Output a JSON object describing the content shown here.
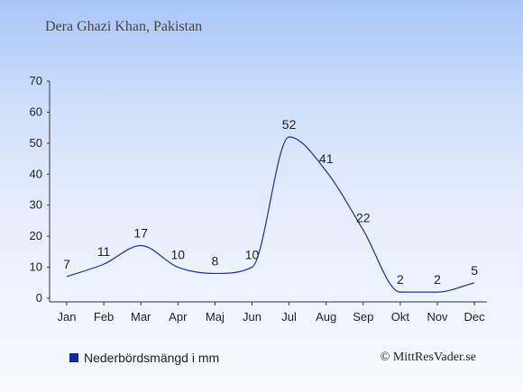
{
  "header": {
    "title": "Dera Ghazi Khan, Pakistan"
  },
  "legend": {
    "label": "Nederbördsmängd i mm",
    "color": "#0a2aa6"
  },
  "credit": {
    "text": "© MittResVader.se"
  },
  "chart_data": {
    "type": "line",
    "title": "Dera Ghazi Khan, Pakistan",
    "xlabel": "",
    "ylabel": "",
    "categories": [
      "Jan",
      "Feb",
      "Mar",
      "Apr",
      "Maj",
      "Jun",
      "Jul",
      "Aug",
      "Sep",
      "Okt",
      "Nov",
      "Dec"
    ],
    "series": [
      {
        "name": "Nederbördsmängd i mm",
        "values": [
          7,
          11,
          17,
          10,
          8,
          10,
          52,
          41,
          22,
          2,
          2,
          5
        ],
        "color": "#1a2fa8"
      }
    ],
    "ylim": [
      0,
      70
    ],
    "yticks": [
      0,
      10,
      20,
      30,
      40,
      50,
      60,
      70
    ],
    "grid": false,
    "legend_position": "bottom-left"
  }
}
